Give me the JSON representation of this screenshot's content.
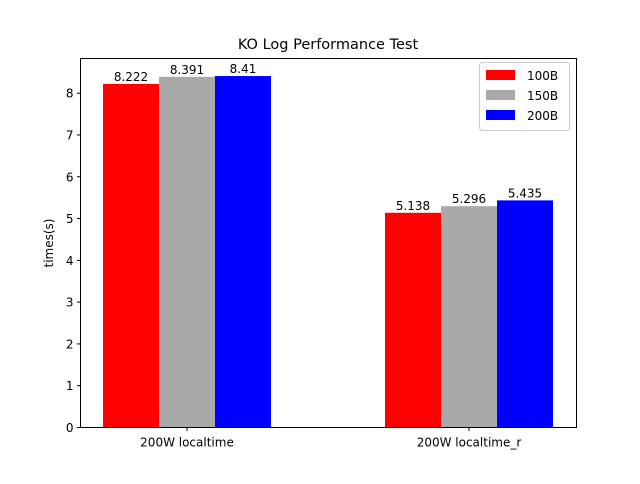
{
  "chart_data": {
    "type": "bar",
    "title": "KO Log Performance Test",
    "xlabel": "",
    "ylabel": "times(s)",
    "ylim": [
      0,
      8.83
    ],
    "yticks": [
      0,
      1,
      2,
      3,
      4,
      5,
      6,
      7,
      8
    ],
    "categories": [
      "200W localtime",
      "200W localtime_r"
    ],
    "series": [
      {
        "name": "100B",
        "color": "#ff0000",
        "values": [
          8.222,
          5.138
        ],
        "labels": [
          "8.222",
          "5.138"
        ]
      },
      {
        "name": "150B",
        "color": "#a9a9a9",
        "values": [
          8.391,
          5.296
        ],
        "labels": [
          "8.391",
          "5.296"
        ]
      },
      {
        "name": "200B",
        "color": "#0000ff",
        "values": [
          8.41,
          5.435
        ],
        "labels": [
          "8.41",
          "5.435"
        ]
      }
    ],
    "legend": "top-right",
    "grid": false
  }
}
